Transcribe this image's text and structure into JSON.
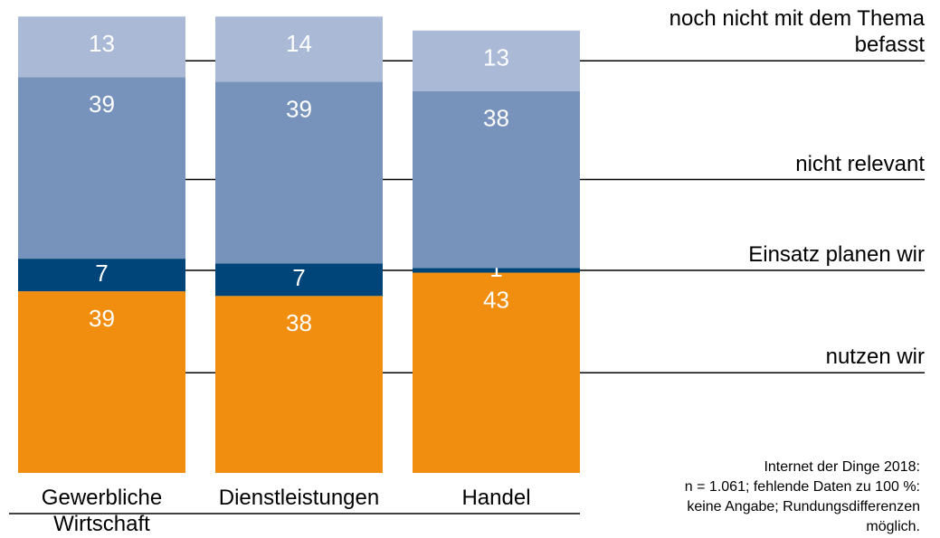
{
  "chart_data": {
    "type": "stacked_bar",
    "categories": [
      [
        "Gewerbliche",
        "Wirtschaft"
      ],
      [
        "Dienstleistungen"
      ],
      [
        "Handel"
      ]
    ],
    "series": [
      {
        "name": "nutzen wir",
        "color": "#f28e0f",
        "values": [
          39,
          38,
          43
        ]
      },
      {
        "name": "Einsatz planen wir",
        "color": "#00457a",
        "values": [
          7,
          7,
          1
        ]
      },
      {
        "name": "nicht relevant",
        "color": "#7793bb",
        "values": [
          39,
          39,
          38
        ]
      },
      {
        "name": "noch nicht mit dem Thema befasst",
        "color": "#a9b9d6",
        "values": [
          13,
          14,
          13
        ]
      }
    ],
    "footnote": [
      "Internet der Dinge 2018:",
      "n = 1.061; fehlende Daten zu 100 %:",
      "keine Angabe; Rundungsdifferenzen",
      "möglich."
    ]
  }
}
